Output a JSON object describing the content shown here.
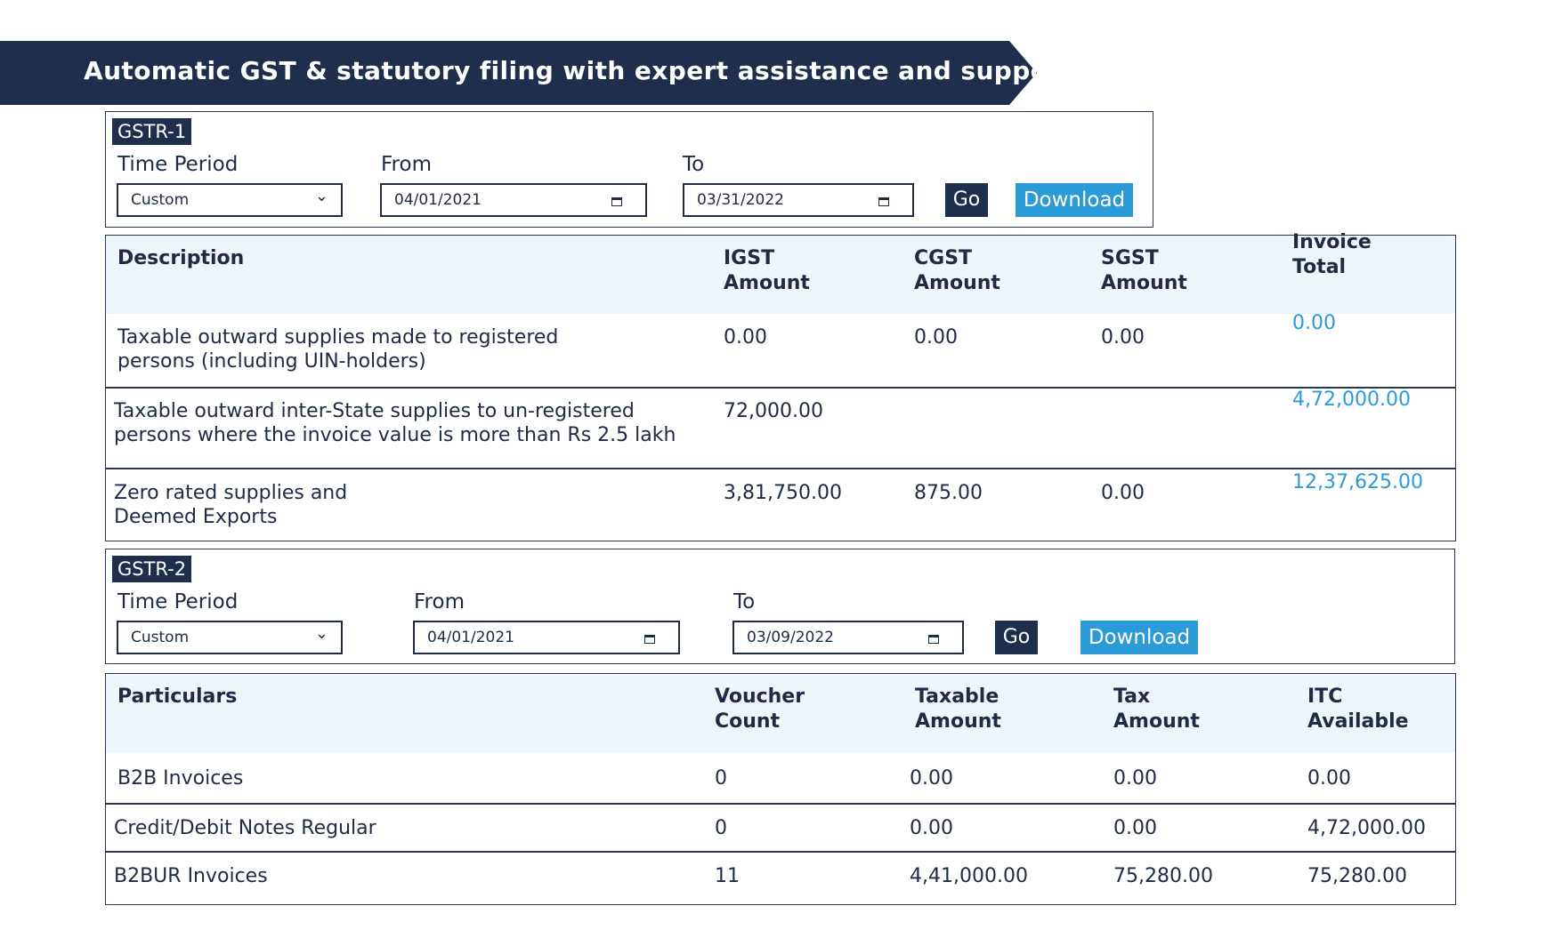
{
  "banner": {
    "title": "Automatic GST & statutory filing with expert assistance and support"
  },
  "gstr1": {
    "badge": "GSTR-1",
    "time_period_label": "Time Period",
    "from_label": "From",
    "to_label": "To",
    "time_period_value": "Custom",
    "from_value": "04/01/2021",
    "to_value": "03/31/2022",
    "go_label": "Go",
    "download_label": "Download"
  },
  "table1": {
    "headers": [
      "Description",
      "IGST\nAmount",
      "CGST\nAmount",
      "SGST\nAmount",
      "Invoice\nTotal"
    ],
    "rows": [
      [
        "Taxable outward supplies made to registered\npersons (including UIN-holders)",
        "0.00",
        "0.00",
        "0.00",
        "0.00"
      ],
      [
        "Taxable outward inter-State supplies to un-registered\npersons where the invoice value is more than Rs 2.5 lakh",
        "72,000.00",
        "",
        "",
        "4,72,000.00"
      ],
      [
        "Zero rated supplies and\nDeemed Exports",
        "3,81,750.00",
        "875.00",
        "0.00",
        "12,37,625.00"
      ]
    ]
  },
  "gstr2": {
    "badge": "GSTR-2",
    "time_period_label": "Time Period",
    "from_label": "From",
    "to_label": "To",
    "time_period_value": "Custom",
    "from_value": "04/01/2021",
    "to_value": "03/09/2022",
    "go_label": "Go",
    "download_label": "Download"
  },
  "table2": {
    "headers": [
      "Particulars",
      "Voucher\nCount",
      "Taxable\nAmount",
      "Tax\nAmount",
      "ITC\nAvailable"
    ],
    "rows": [
      [
        "B2B Invoices",
        "0",
        "0.00",
        "0.00",
        "0.00"
      ],
      [
        "Credit/Debit Notes Regular",
        "0",
        "0.00",
        "0.00",
        "4,72,000.00"
      ],
      [
        "B2BUR Invoices",
        "11",
        "4,41,000.00",
        "75,280.00",
        "75,280.00"
      ]
    ]
  },
  "colors": {
    "navy": "#1f2e4d",
    "accent_blue": "#2b9bd8",
    "header_bg": "#eff6fb"
  },
  "icons": {
    "dropdown": "chevron-down-icon",
    "date": "calendar-icon"
  }
}
